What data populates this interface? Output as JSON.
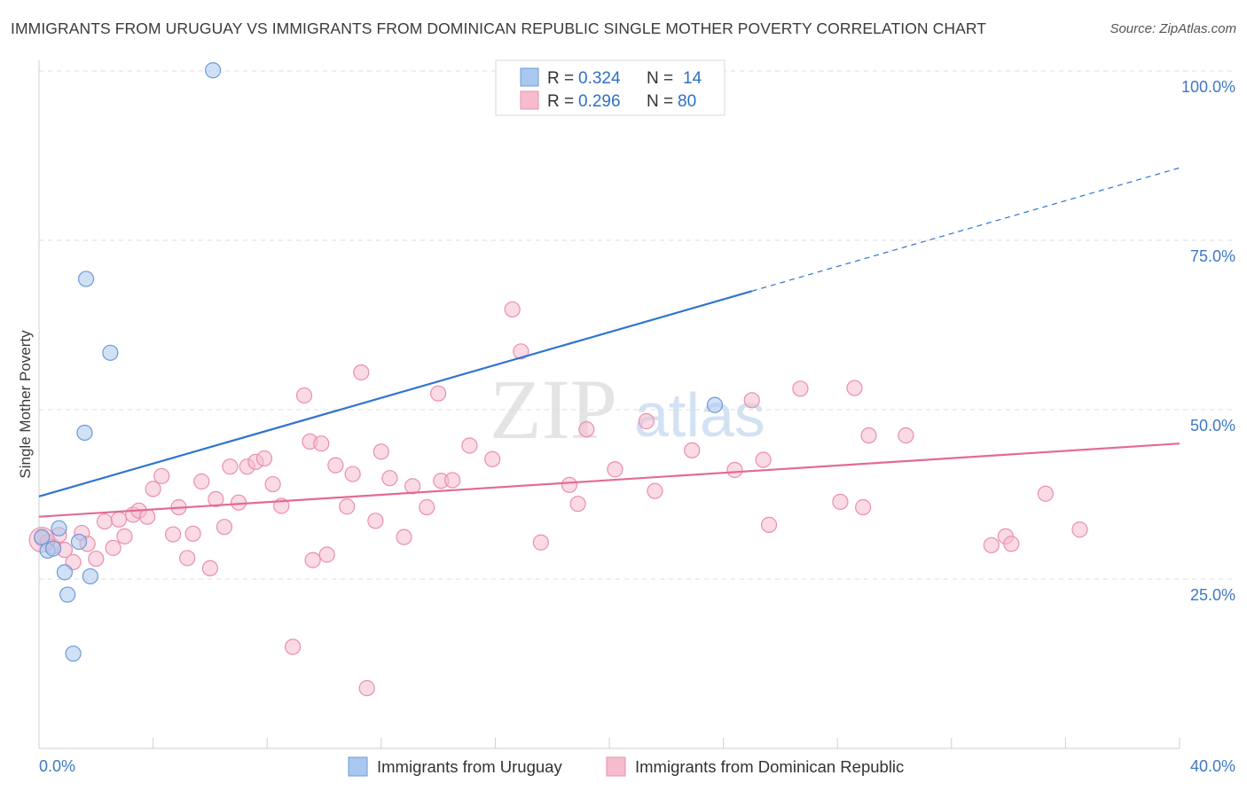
{
  "title": "IMMIGRANTS FROM URUGUAY VS IMMIGRANTS FROM DOMINICAN REPUBLIC SINGLE MOTHER POVERTY CORRELATION CHART",
  "source": "Source: ZipAtlas.com",
  "watermark": {
    "zip": "ZIP",
    "atlas": "atlas"
  },
  "colors": {
    "uruguay_fill": "#aac8ef",
    "uruguay_stroke": "#6b9bd8",
    "uruguay_line": "#2f74d0",
    "dominican_fill": "#f6bccd",
    "dominican_stroke": "#ea8fac",
    "dominican_line": "#e36a96",
    "tick_text": "#3d78c5",
    "grid": "#dddddd"
  },
  "legend": {
    "rows": [
      {
        "r_label": "R =",
        "r_value": "0.324",
        "n_label": "N =",
        "n_value": "14"
      },
      {
        "r_label": "R =",
        "r_value": "0.296",
        "n_label": "N =",
        "n_value": "80"
      }
    ]
  },
  "chart_data": {
    "type": "scatter",
    "title": "IMMIGRANTS FROM URUGUAY VS IMMIGRANTS FROM DOMINICAN REPUBLIC SINGLE MOTHER POVERTY CORRELATION CHART",
    "xlabel": "",
    "ylabel": "Single Mother Poverty",
    "xlim": [
      0,
      40
    ],
    "ylim": [
      0,
      102
    ],
    "x_tick_labels": [
      "0.0%",
      "40.0%"
    ],
    "y_ticks": [
      25,
      50,
      75,
      100
    ],
    "y_tick_labels": [
      "25.0%",
      "50.0%",
      "75.0%",
      "100.0%"
    ],
    "grid": true,
    "legend_position": "top-center",
    "series": [
      {
        "name": "Immigrants from Uruguay",
        "R": 0.324,
        "N": 14,
        "trend": {
          "x0": 0,
          "y0": 37.2,
          "x1": 25,
          "y1": 67.5,
          "x_dashed_end": 40,
          "y_dashed_end": 85.7
        },
        "points": [
          [
            0.1,
            31.2
          ],
          [
            0.3,
            29.2
          ],
          [
            0.5,
            29.5
          ],
          [
            0.7,
            32.5
          ],
          [
            0.9,
            26.0
          ],
          [
            1.0,
            22.7
          ],
          [
            1.2,
            14.0
          ],
          [
            1.4,
            30.5
          ],
          [
            1.6,
            46.6
          ],
          [
            1.65,
            69.3
          ],
          [
            1.8,
            25.4
          ],
          [
            2.5,
            58.4
          ],
          [
            6.1,
            100.1
          ],
          [
            23.7,
            50.7
          ]
        ]
      },
      {
        "name": "Immigrants from Dominican Republic",
        "R": 0.296,
        "N": 80,
        "trend": {
          "x0": 0,
          "y0": 34.2,
          "x1": 40,
          "y1": 45.0
        },
        "points": [
          [
            0.1,
            31.0
          ],
          [
            0.3,
            30.5
          ],
          [
            0.5,
            29.8
          ],
          [
            0.7,
            31.5
          ],
          [
            0.9,
            29.3
          ],
          [
            1.2,
            27.5
          ],
          [
            1.5,
            31.8
          ],
          [
            1.7,
            30.2
          ],
          [
            2.0,
            28.0
          ],
          [
            2.3,
            33.5
          ],
          [
            2.6,
            29.6
          ],
          [
            2.8,
            33.8
          ],
          [
            3.0,
            31.3
          ],
          [
            3.3,
            34.5
          ],
          [
            3.5,
            35.1
          ],
          [
            3.8,
            34.2
          ],
          [
            4.0,
            38.3
          ],
          [
            4.3,
            40.2
          ],
          [
            4.7,
            31.6
          ],
          [
            4.9,
            35.6
          ],
          [
            5.2,
            28.1
          ],
          [
            5.4,
            31.7
          ],
          [
            5.7,
            39.4
          ],
          [
            6.0,
            26.6
          ],
          [
            6.2,
            36.8
          ],
          [
            6.5,
            32.7
          ],
          [
            6.7,
            41.6
          ],
          [
            7.0,
            36.3
          ],
          [
            7.3,
            41.6
          ],
          [
            7.6,
            42.3
          ],
          [
            7.9,
            42.8
          ],
          [
            8.2,
            39.0
          ],
          [
            8.5,
            35.8
          ],
          [
            8.9,
            15.0
          ],
          [
            9.3,
            52.1
          ],
          [
            9.5,
            45.3
          ],
          [
            9.9,
            45.0
          ],
          [
            9.6,
            27.8
          ],
          [
            10.1,
            28.6
          ],
          [
            10.4,
            41.8
          ],
          [
            10.8,
            35.7
          ],
          [
            11.0,
            40.5
          ],
          [
            11.3,
            55.5
          ],
          [
            11.5,
            8.9
          ],
          [
            11.8,
            33.6
          ],
          [
            12.0,
            43.8
          ],
          [
            12.3,
            39.9
          ],
          [
            12.8,
            31.2
          ],
          [
            13.1,
            38.7
          ],
          [
            13.6,
            35.6
          ],
          [
            14.1,
            39.5
          ],
          [
            14.5,
            39.6
          ],
          [
            14.0,
            52.4
          ],
          [
            15.1,
            44.7
          ],
          [
            15.9,
            42.7
          ],
          [
            16.6,
            64.8
          ],
          [
            16.9,
            58.6
          ],
          [
            17.6,
            30.4
          ],
          [
            18.6,
            38.9
          ],
          [
            18.9,
            36.1
          ],
          [
            19.2,
            47.1
          ],
          [
            20.2,
            41.2
          ],
          [
            21.3,
            48.3
          ],
          [
            21.6,
            38.0
          ],
          [
            22.9,
            44.0
          ],
          [
            24.4,
            41.1
          ],
          [
            25.0,
            51.4
          ],
          [
            25.4,
            42.6
          ],
          [
            25.6,
            33.0
          ],
          [
            26.7,
            53.1
          ],
          [
            28.1,
            36.4
          ],
          [
            28.6,
            53.2
          ],
          [
            28.9,
            35.6
          ],
          [
            29.1,
            46.2
          ],
          [
            30.4,
            46.2
          ],
          [
            33.4,
            30.0
          ],
          [
            33.9,
            31.3
          ],
          [
            34.1,
            30.2
          ],
          [
            35.3,
            37.6
          ],
          [
            36.5,
            32.3
          ]
        ]
      }
    ]
  },
  "bottom_legend": {
    "items": [
      {
        "label": "Immigrants from Uruguay"
      },
      {
        "label": "Immigrants from Dominican Republic"
      }
    ]
  }
}
